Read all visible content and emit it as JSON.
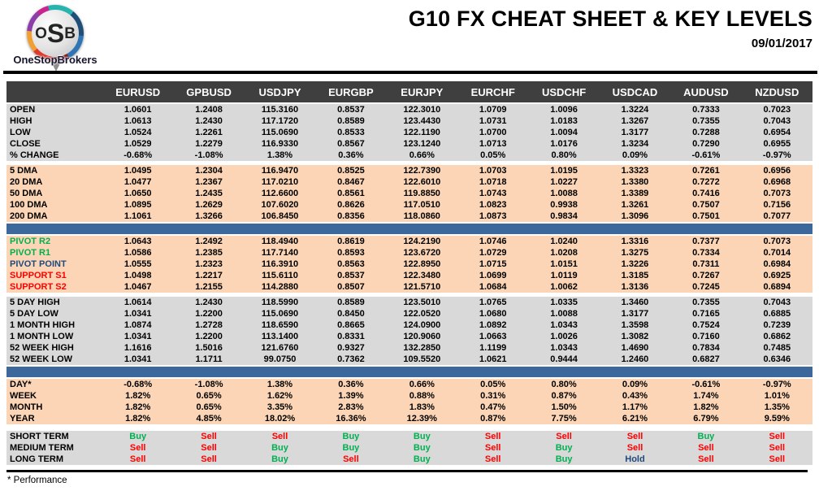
{
  "logo": {
    "monogram_parts": [
      "O",
      "S",
      "B"
    ],
    "brand": "OneStopBrokers"
  },
  "header": {
    "title": "G10 FX CHEAT SHEET & KEY LEVELS",
    "date": "09/01/2017"
  },
  "colors": {
    "accent_green": "#00B050",
    "accent_red": "#FF0000",
    "accent_navy": "#1F497D",
    "header_bg": "#3F3F3F",
    "band_gray": "#D9D9D9",
    "band_orange": "#FBD5B5",
    "divider_blue": "#3D689B"
  },
  "signal_color_map": {
    "Buy": "accent_green",
    "Sell": "accent_red",
    "Hold": "accent_navy"
  },
  "table": {
    "columns": [
      "EURUSD",
      "GPBUSD",
      "USDJPY",
      "EURGBP",
      "EURJPY",
      "EURCHF",
      "USDCHF",
      "USDCAD",
      "AUDUSD",
      "NZDUSD"
    ],
    "sections": [
      {
        "type": "rows",
        "style": "gray",
        "gap": "none",
        "rows": [
          {
            "label": "OPEN",
            "values": [
              "1.0601",
              "1.2408",
              "115.3160",
              "0.8537",
              "122.3010",
              "1.0709",
              "1.0096",
              "1.3224",
              "0.7333",
              "0.7023"
            ]
          },
          {
            "label": "HIGH",
            "values": [
              "1.0613",
              "1.2430",
              "117.1720",
              "0.8589",
              "123.4430",
              "1.0731",
              "1.0183",
              "1.3267",
              "0.7355",
              "0.7043"
            ]
          },
          {
            "label": "LOW",
            "values": [
              "1.0524",
              "1.2261",
              "115.0690",
              "0.8533",
              "122.1190",
              "1.0700",
              "1.0094",
              "1.3177",
              "0.7288",
              "0.6954"
            ]
          },
          {
            "label": "CLOSE",
            "values": [
              "1.0529",
              "1.2279",
              "116.9330",
              "0.8567",
              "123.1240",
              "1.0713",
              "1.0176",
              "1.3234",
              "0.7290",
              "0.6955"
            ]
          },
          {
            "label": "% CHANGE",
            "values": [
              "-0.68%",
              "-1.08%",
              "1.38%",
              "0.36%",
              "0.66%",
              "0.05%",
              "0.80%",
              "0.09%",
              "-0.61%",
              "-0.97%"
            ]
          }
        ]
      },
      {
        "type": "rows",
        "style": "orange",
        "gap": "gapped",
        "rows": [
          {
            "label": "5 DMA",
            "values": [
              "1.0495",
              "1.2304",
              "116.9470",
              "0.8525",
              "122.7390",
              "1.0703",
              "1.0195",
              "1.3323",
              "0.7261",
              "0.6956"
            ]
          },
          {
            "label": "20 DMA",
            "values": [
              "1.0477",
              "1.2367",
              "117.0210",
              "0.8467",
              "122.6010",
              "1.0718",
              "1.0227",
              "1.3380",
              "0.7272",
              "0.6968"
            ]
          },
          {
            "label": "50 DMA",
            "values": [
              "1.0650",
              "1.2435",
              "112.6600",
              "0.8561",
              "119.8850",
              "1.0743",
              "1.0088",
              "1.3389",
              "0.7416",
              "0.7073"
            ]
          },
          {
            "label": "100 DMA",
            "values": [
              "1.0895",
              "1.2629",
              "107.6020",
              "0.8626",
              "117.0510",
              "1.0823",
              "0.9938",
              "1.3261",
              "0.7507",
              "0.7156"
            ]
          },
          {
            "label": "200 DMA",
            "values": [
              "1.1061",
              "1.3266",
              "106.8450",
              "0.8356",
              "118.0860",
              "1.0873",
              "0.9834",
              "1.3096",
              "0.7501",
              "0.7077"
            ]
          }
        ]
      },
      {
        "type": "divider"
      },
      {
        "type": "rows",
        "style": "orange",
        "gap": "none",
        "rows": [
          {
            "label": "PIVOT R2",
            "label_color": "accent_green",
            "values": [
              "1.0643",
              "1.2492",
              "118.4940",
              "0.8619",
              "124.2190",
              "1.0746",
              "1.0240",
              "1.3316",
              "0.7377",
              "0.7073"
            ]
          },
          {
            "label": "PIVOT R1",
            "label_color": "accent_green",
            "values": [
              "1.0586",
              "1.2385",
              "117.7140",
              "0.8593",
              "123.6720",
              "1.0729",
              "1.0208",
              "1.3275",
              "0.7334",
              "0.7014"
            ]
          },
          {
            "label": "PIVOT POINT",
            "label_color": "accent_navy",
            "values": [
              "1.0555",
              "1.2323",
              "116.3910",
              "0.8563",
              "122.8950",
              "1.0715",
              "1.0151",
              "1.3226",
              "0.7311",
              "0.6984"
            ]
          },
          {
            "label": "SUPPORT S1",
            "label_color": "accent_red",
            "values": [
              "1.0498",
              "1.2217",
              "115.6110",
              "0.8537",
              "122.3480",
              "1.0699",
              "1.0119",
              "1.3185",
              "0.7267",
              "0.6925"
            ]
          },
          {
            "label": "SUPPORT S2",
            "label_color": "accent_red",
            "values": [
              "1.0467",
              "1.2155",
              "114.2880",
              "0.8507",
              "121.5710",
              "1.0684",
              "1.0062",
              "1.3136",
              "0.7245",
              "0.6894"
            ]
          }
        ]
      },
      {
        "type": "rows",
        "style": "gray",
        "gap": "gapped",
        "rows": [
          {
            "label": "5 DAY HIGH",
            "values": [
              "1.0614",
              "1.2430",
              "118.5990",
              "0.8589",
              "123.5010",
              "1.0765",
              "1.0335",
              "1.3460",
              "0.7355",
              "0.7043"
            ]
          },
          {
            "label": "5 DAY LOW",
            "values": [
              "1.0341",
              "1.2200",
              "115.0690",
              "0.8450",
              "122.0520",
              "1.0680",
              "1.0088",
              "1.3177",
              "0.7165",
              "0.6885"
            ]
          },
          {
            "label": "1 MONTH HIGH",
            "values": [
              "1.0874",
              "1.2728",
              "118.6590",
              "0.8665",
              "124.0900",
              "1.0892",
              "1.0343",
              "1.3598",
              "0.7524",
              "0.7239"
            ]
          },
          {
            "label": "1 MONTH LOW",
            "values": [
              "1.0341",
              "1.2200",
              "113.1400",
              "0.8331",
              "120.9060",
              "1.0663",
              "1.0026",
              "1.3082",
              "0.7160",
              "0.6862"
            ]
          },
          {
            "label": "52 WEEK HIGH",
            "values": [
              "1.1616",
              "1.5016",
              "121.6760",
              "0.9327",
              "132.2850",
              "1.1199",
              "1.0343",
              "1.4690",
              "0.7834",
              "0.7485"
            ]
          },
          {
            "label": "52 WEEK LOW",
            "values": [
              "1.0341",
              "1.1711",
              "99.0750",
              "0.7362",
              "109.5520",
              "1.0621",
              "0.9444",
              "1.2460",
              "0.6827",
              "0.6346"
            ]
          }
        ]
      },
      {
        "type": "divider"
      },
      {
        "type": "rows",
        "style": "orange",
        "gap": "none",
        "rows": [
          {
            "label": "DAY*",
            "values": [
              "-0.68%",
              "-1.08%",
              "1.38%",
              "0.36%",
              "0.66%",
              "0.05%",
              "0.80%",
              "0.09%",
              "-0.61%",
              "-0.97%"
            ]
          },
          {
            "label": "WEEK",
            "values": [
              "1.82%",
              "0.65%",
              "1.62%",
              "1.39%",
              "0.88%",
              "0.31%",
              "0.87%",
              "0.43%",
              "1.74%",
              "1.01%"
            ]
          },
          {
            "label": "MONTH",
            "values": [
              "1.82%",
              "0.65%",
              "3.35%",
              "2.83%",
              "1.83%",
              "0.47%",
              "1.50%",
              "1.17%",
              "1.82%",
              "1.35%"
            ]
          },
          {
            "label": "YEAR",
            "values": [
              "1.82%",
              "4.85%",
              "18.02%",
              "16.36%",
              "12.39%",
              "0.87%",
              "7.75%",
              "6.21%",
              "6.79%",
              "9.59%"
            ]
          }
        ]
      },
      {
        "type": "rows",
        "style": "gray",
        "gap": "gapped-lg",
        "signals": true,
        "rows": [
          {
            "label": "SHORT TERM",
            "values": [
              "Buy",
              "Sell",
              "Sell",
              "Buy",
              "Buy",
              "Sell",
              "Sell",
              "Sell",
              "Buy",
              "Sell"
            ]
          },
          {
            "label": "MEDIUM TERM",
            "values": [
              "Sell",
              "Sell",
              "Buy",
              "Buy",
              "Buy",
              "Sell",
              "Buy",
              "Sell",
              "Sell",
              "Sell"
            ]
          },
          {
            "label": "LONG TERM",
            "values": [
              "Sell",
              "Sell",
              "Buy",
              "Sell",
              "Buy",
              "Sell",
              "Buy",
              "Hold",
              "Sell",
              "Sell"
            ]
          }
        ]
      }
    ]
  },
  "footnote": "* Performance"
}
